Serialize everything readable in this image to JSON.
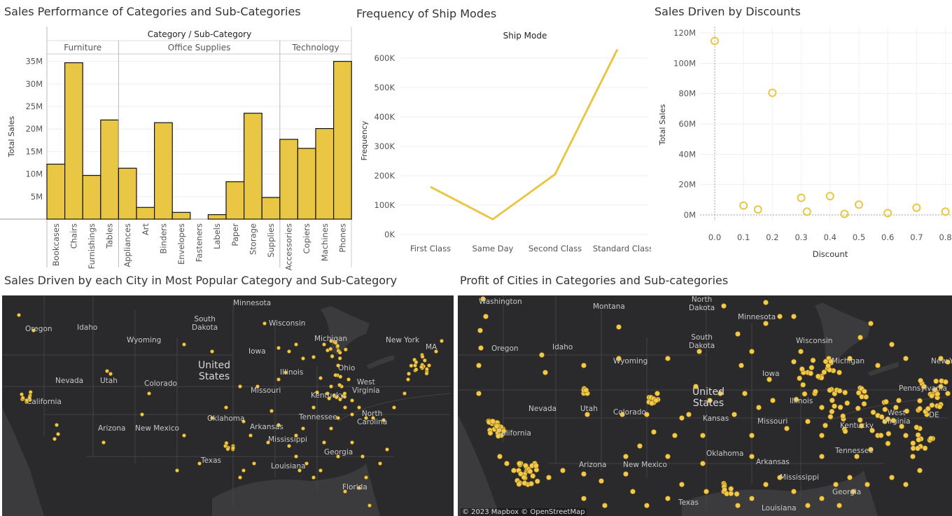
{
  "colors": {
    "accent": "#EAC645",
    "bar_stroke": "#111111",
    "map_bg": "#2f2f31"
  },
  "titles": {
    "bar": "Sales Performance of Categories and Sub-Categories",
    "line": "Frequency of Ship Modes",
    "scatter": "Sales Driven by Discounts",
    "map1": "Sales Driven by each City in Most Popular Category and Sub-Category",
    "map2": "Profit of Cities in Categories and Sub-categories"
  },
  "chart_data": [
    {
      "type": "bar",
      "header": "Category / Sub-Category",
      "ylabel": "Total Sales",
      "ylim": [
        0,
        35000000
      ],
      "yticks": [
        "5M",
        "10M",
        "15M",
        "20M",
        "25M",
        "30M",
        "35M"
      ],
      "yticks_values": [
        5000000,
        10000000,
        15000000,
        20000000,
        25000000,
        30000000,
        35000000
      ],
      "groups": [
        {
          "name": "Furniture",
          "categories": [
            "Bookcases",
            "Chairs",
            "Furnishings",
            "Tables"
          ],
          "values": [
            12200000,
            34700000,
            9700000,
            22000000
          ]
        },
        {
          "name": "Office Supplies",
          "categories": [
            "Appliances",
            "Art",
            "Binders",
            "Envelopes",
            "Fasteners",
            "Labels",
            "Paper",
            "Storage",
            "Supplies"
          ],
          "values": [
            11300000,
            2600000,
            21400000,
            1500000,
            0,
            1000000,
            8300000,
            23500000,
            4800000
          ]
        },
        {
          "name": "Technology",
          "categories": [
            "Accessories",
            "Copiers",
            "Machines",
            "Phones"
          ],
          "values": [
            17700000,
            15700000,
            20100000,
            35000000
          ]
        }
      ]
    },
    {
      "type": "line",
      "header": "Ship Mode",
      "ylabel": "Frequency",
      "ylim": [
        0,
        650000
      ],
      "yticks": [
        "0K",
        "100K",
        "200K",
        "300K",
        "400K",
        "500K",
        "600K"
      ],
      "yticks_values": [
        0,
        100000,
        200000,
        300000,
        400000,
        500000,
        600000
      ],
      "categories": [
        "First Class",
        "Same Day",
        "Second Class",
        "Standard Class"
      ],
      "values": [
        162000,
        52000,
        205000,
        630000
      ]
    },
    {
      "type": "scatter",
      "xlabel": "Discount",
      "ylabel": "Total Sales",
      "xlim": [
        0,
        0.8
      ],
      "ylim": [
        0,
        120000000
      ],
      "xticks": [
        "0.0",
        "0.1",
        "0.2",
        "0.3",
        "0.4",
        "0.5",
        "0.6",
        "0.7",
        "0.8"
      ],
      "yticks": [
        "0M",
        "20M",
        "40M",
        "60M",
        "80M",
        "100M",
        "120M"
      ],
      "yticks_values": [
        0,
        20000000,
        40000000,
        60000000,
        80000000,
        100000000,
        120000000
      ],
      "points": [
        {
          "x": 0.0,
          "y": 114700000
        },
        {
          "x": 0.1,
          "y": 6200000
        },
        {
          "x": 0.15,
          "y": 3600000
        },
        {
          "x": 0.2,
          "y": 80500000
        },
        {
          "x": 0.3,
          "y": 11300000
        },
        {
          "x": 0.32,
          "y": 2200000
        },
        {
          "x": 0.4,
          "y": 12400000
        },
        {
          "x": 0.45,
          "y": 700000
        },
        {
          "x": 0.5,
          "y": 6800000
        },
        {
          "x": 0.6,
          "y": 1200000
        },
        {
          "x": 0.7,
          "y": 4800000
        },
        {
          "x": 0.8,
          "y": 2200000
        }
      ]
    }
  ],
  "map1": {
    "big_label": "United\nStates",
    "labels": [
      "Minnesota",
      "Oregon",
      "Idaho",
      "South\nDakota",
      "Wisconsin",
      "Wyoming",
      "Michigan",
      "New York",
      "Iowa",
      "Nevada",
      "Utah",
      "Colorado",
      "Illinois",
      "Ohio",
      "West\nVirginia",
      "California",
      "Missouri",
      "Kentucky",
      "Oklahoma",
      "Arkansas",
      "Tennessee",
      "North\nCarolina",
      "Arizona",
      "New Mexico",
      "Mississippi",
      "Georgia",
      "Texas",
      "Louisiana",
      "Florida",
      "MA"
    ]
  },
  "map2": {
    "big_label": "United\nStates",
    "labels": [
      "Washington",
      "North\nDakota",
      "Montana",
      "Minnesota",
      "Oregon",
      "Idaho",
      "South\nDakota",
      "Wisconsin",
      "Wyoming",
      "Michigan",
      "New York",
      "Iowa",
      "Pennsylvania",
      "Nevada",
      "Utah",
      "Colorado",
      "Kansas",
      "Illinois",
      "Missouri",
      "Kentucky",
      "West\nVirginia",
      "California",
      "Oklahoma",
      "Tennessee",
      "Arkansas",
      "Arizona",
      "New Mexico",
      "Mississippi",
      "Georgia",
      "Texas",
      "Louisiana",
      "DE"
    ],
    "attribution": "© 2023 Mapbox © OpenStreetMap"
  }
}
